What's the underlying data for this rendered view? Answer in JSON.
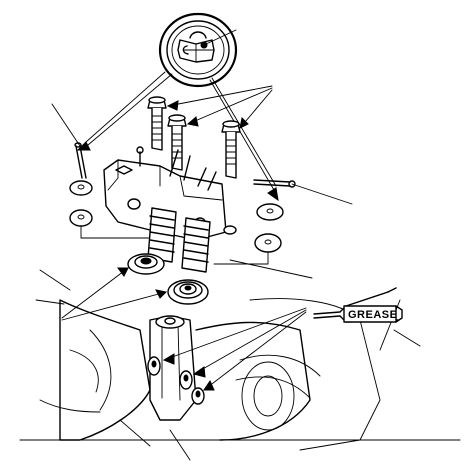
{
  "diagram": {
    "labels": {
      "grease_tag": "GREASE"
    },
    "colors": {
      "ink": "#000000",
      "paper": "#ffffff"
    },
    "icons": [
      "grease-tube-icon"
    ]
  }
}
